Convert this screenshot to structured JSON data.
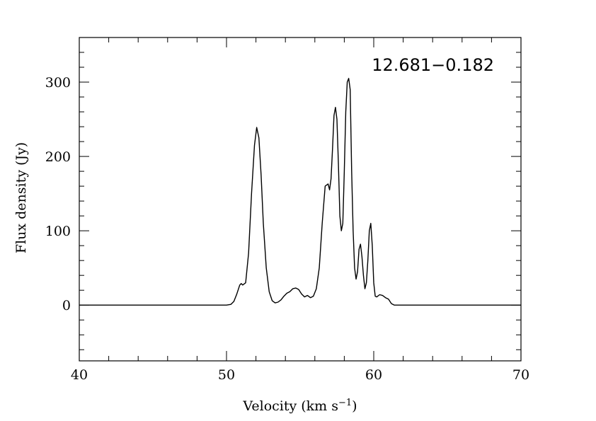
{
  "chart_data": {
    "type": "line",
    "title": "",
    "annotation": "12.681−0.182",
    "xlabel": "Velocity (km s",
    "xlabel_sup": "−1",
    "xlabel_close": ")",
    "ylabel": "Flux density (Jy)",
    "xlim": [
      40,
      70
    ],
    "ylim": [
      -75,
      360
    ],
    "x_ticks": [
      40,
      50,
      60,
      70
    ],
    "x_tick_labels": [
      "40",
      "50",
      "60",
      "70"
    ],
    "x_minor_step": 2,
    "y_ticks": [
      0,
      100,
      200,
      300
    ],
    "y_tick_labels": [
      "0",
      "100",
      "200",
      "300"
    ],
    "y_minor_step": 20,
    "grid": false,
    "line_color": "#000000",
    "series": [
      {
        "x": [
          40,
          45,
          50,
          50.3,
          50.5,
          50.7,
          50.9,
          51.0,
          51.1,
          51.3,
          51.5,
          51.7,
          51.9,
          52.05,
          52.2,
          52.35,
          52.5,
          52.7,
          52.9,
          53.1,
          53.3,
          53.5,
          53.7,
          53.9,
          54.1,
          54.3,
          54.5,
          54.7,
          54.9,
          55.1,
          55.3,
          55.5,
          55.7,
          55.9,
          56.1,
          56.3,
          56.5,
          56.7,
          56.9,
          57.0,
          57.1,
          57.2,
          57.3,
          57.4,
          57.5,
          57.6,
          57.7,
          57.8,
          57.9,
          58.0,
          58.1,
          58.2,
          58.3,
          58.4,
          58.5,
          58.6,
          58.7,
          58.8,
          58.9,
          59.0,
          59.1,
          59.2,
          59.3,
          59.4,
          59.5,
          59.6,
          59.7,
          59.8,
          59.9,
          60.0,
          60.1,
          60.2,
          60.4,
          60.6,
          60.8,
          61.0,
          61.2,
          61.4,
          62,
          65,
          70
        ],
        "y": [
          0,
          0,
          0,
          1,
          5,
          15,
          27,
          29,
          27,
          30,
          70,
          150,
          215,
          239,
          225,
          175,
          110,
          50,
          18,
          6,
          3,
          4,
          7,
          12,
          16,
          18,
          22,
          23,
          21,
          15,
          11,
          13,
          10,
          12,
          22,
          50,
          110,
          160,
          163,
          155,
          170,
          210,
          255,
          266,
          250,
          190,
          120,
          100,
          110,
          180,
          260,
          300,
          305,
          290,
          180,
          100,
          50,
          35,
          45,
          75,
          82,
          65,
          40,
          22,
          30,
          60,
          100,
          110,
          80,
          30,
          12,
          11,
          14,
          13,
          10,
          8,
          2,
          0,
          0,
          0,
          0
        ]
      }
    ]
  }
}
